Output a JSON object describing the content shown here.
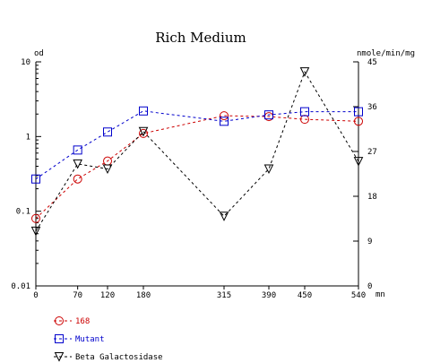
{
  "chart_data": {
    "type": "line",
    "title": "Rich Medium",
    "xlabel": "mn",
    "ylabel_left": "od",
    "ylabel_right": "nmole/min/mg",
    "x_ticks": [
      "0",
      "70",
      "120",
      "180",
      "315",
      "390",
      "450",
      "540"
    ],
    "x_range": [
      0,
      540
    ],
    "y_left_scale": "log",
    "y_left_range": [
      0.01,
      10
    ],
    "y_left_ticks": [
      "10",
      "1",
      "0.1",
      "0.01"
    ],
    "y_right_scale": "linear",
    "y_right_range": [
      0,
      45
    ],
    "y_right_ticks": [
      "45",
      "36",
      "27",
      "18",
      "9",
      "0"
    ],
    "grid": false,
    "legend_position": "bottom-left",
    "series": [
      {
        "name": "168",
        "axis": "left",
        "color": "#cc0000",
        "marker": "circle",
        "x": [
          0,
          70,
          120,
          180,
          315,
          390,
          450,
          540
        ],
        "y": [
          0.08,
          0.27,
          0.47,
          1.1,
          1.9,
          1.85,
          1.7,
          1.6
        ]
      },
      {
        "name": "Mutant",
        "axis": "left",
        "color": "#0000cc",
        "marker": "square",
        "x": [
          0,
          70,
          120,
          180,
          315,
          390,
          450,
          540
        ],
        "y": [
          0.27,
          0.66,
          1.15,
          2.2,
          1.6,
          1.95,
          2.15,
          2.15
        ]
      },
      {
        "name": "Beta Galactosidase",
        "axis": "right",
        "color": "#000000",
        "marker": "triangle-down",
        "x": [
          0,
          70,
          120,
          180,
          315,
          390,
          450,
          540
        ],
        "y": [
          11,
          24.5,
          23.5,
          31,
          14,
          23.5,
          43,
          25
        ]
      }
    ]
  }
}
